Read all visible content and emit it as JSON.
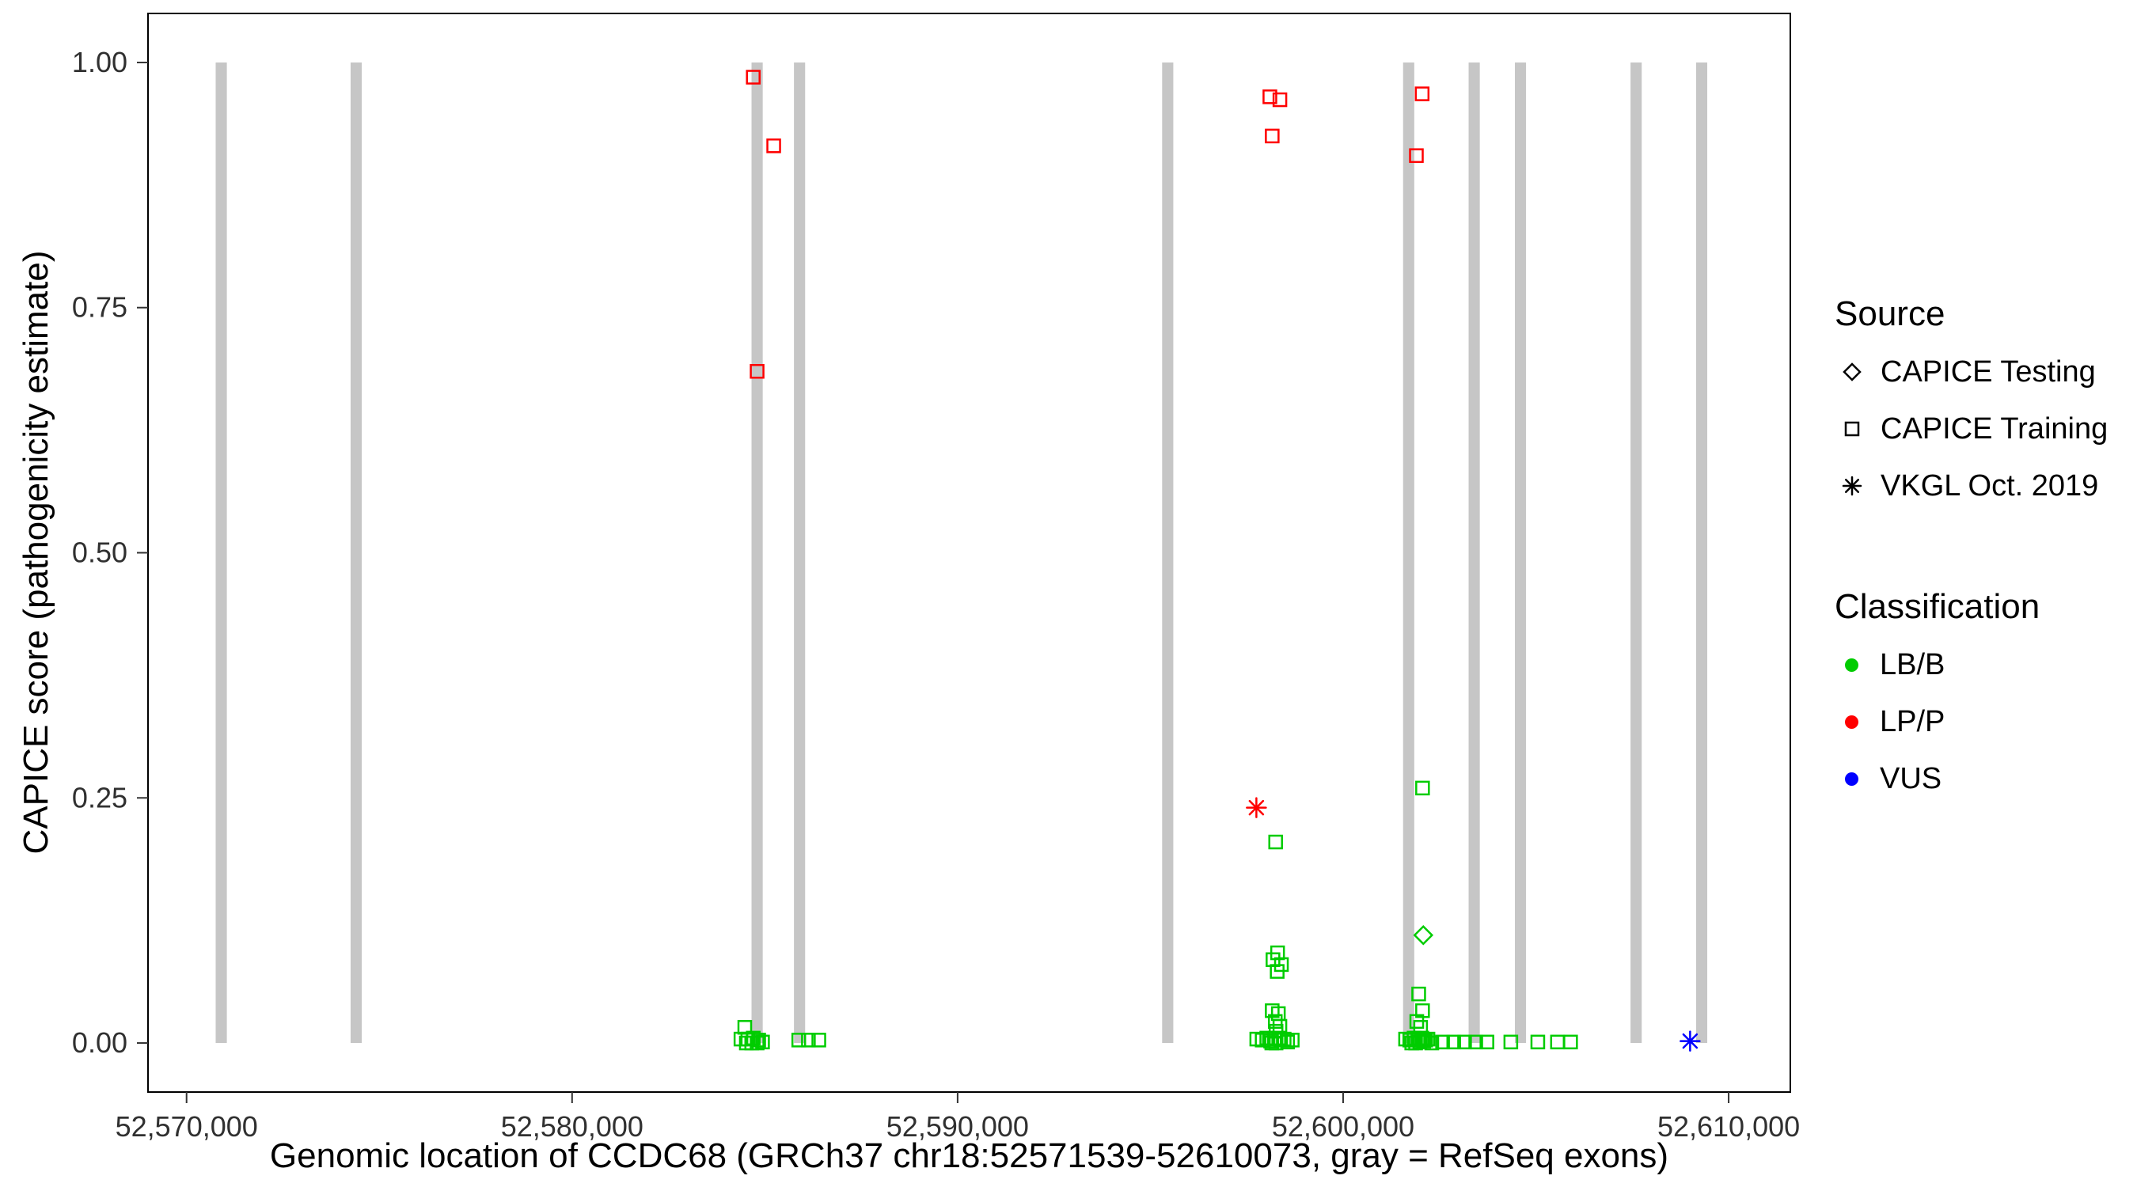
{
  "figure": {
    "background": "#FFFFFF",
    "panel_border_color": "#000000",
    "tick_label_color": "#303030"
  },
  "legend": {
    "source": {
      "title": "Source",
      "items": [
        {
          "label": "CAPICE Testing",
          "shape": "diamond"
        },
        {
          "label": "CAPICE Training",
          "shape": "square"
        },
        {
          "label": "VKGL Oct. 2019",
          "shape": "asterisk"
        }
      ]
    },
    "classification": {
      "title": "Classification",
      "items": [
        {
          "label": "LB/B",
          "color": "#00CC00"
        },
        {
          "label": "LP/P",
          "color": "#FF0000"
        },
        {
          "label": "VUS",
          "color": "#0000FF"
        }
      ]
    }
  },
  "chart_data": {
    "type": "scatter",
    "title": "",
    "xlabel": "Genomic location of CCDC68 (GRCh37 chr18:52571539-52610073, gray = RefSeq exons)",
    "ylabel": "CAPICE score (pathogenicity estimate)",
    "x_domain": [
      52569000,
      52611600
    ],
    "y_domain": [
      -0.05,
      1.05
    ],
    "grid": false,
    "legend_position": "right",
    "x_ticks": [
      {
        "value": 52570000,
        "label": "52,570,000"
      },
      {
        "value": 52580000,
        "label": "52,580,000"
      },
      {
        "value": 52590000,
        "label": "52,590,000"
      },
      {
        "value": 52600000,
        "label": "52,600,000"
      },
      {
        "value": 52610000,
        "label": "52,610,000"
      }
    ],
    "y_ticks": [
      {
        "value": 0.0,
        "label": "0.00"
      },
      {
        "value": 0.25,
        "label": "0.25"
      },
      {
        "value": 0.5,
        "label": "0.50"
      },
      {
        "value": 0.75,
        "label": "0.75"
      },
      {
        "value": 1.0,
        "label": "1.00"
      }
    ],
    "exon_color": "#C6C6C6",
    "exon_halfwidth_bp": 145,
    "exons": [
      52570900,
      52574400,
      52584800,
      52585900,
      52595450,
      52601700,
      52603400,
      52604600,
      52607600,
      52609300
    ],
    "series": [
      {
        "name": "LB/B CAPICE Training",
        "classification": "LB/B",
        "source": "CAPICE Training",
        "shape": "square",
        "color": "#00CC00",
        "points": [
          [
            52584480,
            0.016
          ],
          [
            52584380,
            0.004
          ],
          [
            52584560,
            0.004
          ],
          [
            52584700,
            0.005
          ],
          [
            52584840,
            0.003
          ],
          [
            52584520,
            0.0
          ],
          [
            52584660,
            0.0
          ],
          [
            52584800,
            0.0
          ],
          [
            52584940,
            0.001
          ],
          [
            52585880,
            0.003
          ],
          [
            52586130,
            0.003
          ],
          [
            52586400,
            0.003
          ],
          [
            52598250,
            0.205
          ],
          [
            52598300,
            0.092
          ],
          [
            52598180,
            0.085
          ],
          [
            52598400,
            0.08
          ],
          [
            52598290,
            0.073
          ],
          [
            52598160,
            0.033
          ],
          [
            52598320,
            0.03
          ],
          [
            52598240,
            0.022
          ],
          [
            52598360,
            0.017
          ],
          [
            52598260,
            0.012
          ],
          [
            52597760,
            0.004
          ],
          [
            52597900,
            0.003
          ],
          [
            52598020,
            0.005
          ],
          [
            52598120,
            0.002
          ],
          [
            52598220,
            0.004
          ],
          [
            52598330,
            0.005
          ],
          [
            52598150,
            0.0
          ],
          [
            52598260,
            0.0
          ],
          [
            52598380,
            0.003
          ],
          [
            52598470,
            0.004
          ],
          [
            52598560,
            0.001
          ],
          [
            52598680,
            0.003
          ],
          [
            52602060,
            0.26
          ],
          [
            52601960,
            0.05
          ],
          [
            52602060,
            0.033
          ],
          [
            52601910,
            0.022
          ],
          [
            52602010,
            0.016
          ],
          [
            52601620,
            0.004
          ],
          [
            52601730,
            0.003
          ],
          [
            52601840,
            0.005
          ],
          [
            52601940,
            0.004
          ],
          [
            52602040,
            0.005
          ],
          [
            52602140,
            0.003
          ],
          [
            52601780,
            0.0
          ],
          [
            52601880,
            0.0
          ],
          [
            52601990,
            0.001
          ],
          [
            52602090,
            0.002
          ],
          [
            52602200,
            0.004
          ],
          [
            52602300,
            0.0
          ],
          [
            52602580,
            0.001
          ],
          [
            52602870,
            0.001
          ],
          [
            52603150,
            0.001
          ],
          [
            52603440,
            0.001
          ],
          [
            52603730,
            0.001
          ],
          [
            52604350,
            0.001
          ],
          [
            52605050,
            0.001
          ],
          [
            52605560,
            0.001
          ],
          [
            52605900,
            0.001
          ]
        ]
      },
      {
        "name": "LB/B CAPICE Testing",
        "classification": "LB/B",
        "source": "CAPICE Testing",
        "shape": "diamond",
        "color": "#00CC00",
        "points": [
          [
            52602080,
            0.11
          ]
        ]
      },
      {
        "name": "LP/P CAPICE Training",
        "classification": "LP/P",
        "source": "CAPICE Training",
        "shape": "square",
        "color": "#FF0000",
        "points": [
          [
            52584700,
            0.985
          ],
          [
            52585230,
            0.915
          ],
          [
            52584800,
            0.685
          ],
          [
            52598100,
            0.965
          ],
          [
            52598360,
            0.962
          ],
          [
            52598160,
            0.925
          ],
          [
            52602050,
            0.968
          ],
          [
            52601900,
            0.905
          ]
        ]
      },
      {
        "name": "LP/P VKGL Oct. 2019",
        "classification": "LP/P",
        "source": "VKGL Oct. 2019",
        "shape": "asterisk",
        "color": "#FF0000",
        "points": [
          [
            52597750,
            0.24
          ]
        ]
      },
      {
        "name": "VUS VKGL Oct. 2019",
        "classification": "VUS",
        "source": "VKGL Oct. 2019",
        "shape": "asterisk",
        "color": "#0000FF",
        "points": [
          [
            52609000,
            0.002
          ]
        ]
      }
    ]
  }
}
